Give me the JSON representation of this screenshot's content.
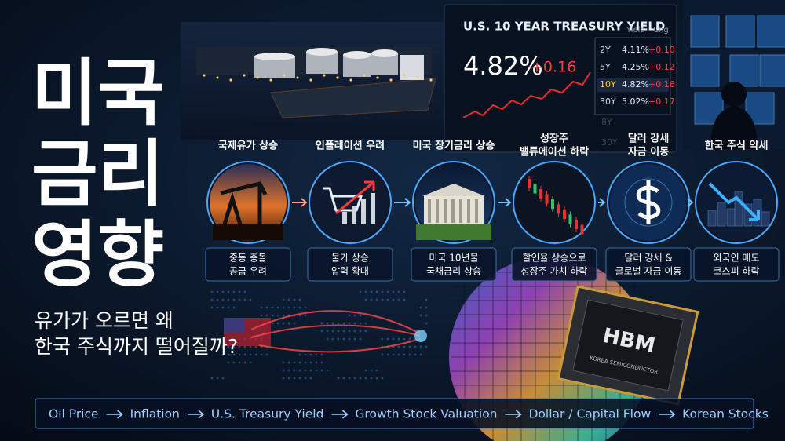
{
  "title": {
    "lines": [
      "미국",
      "금리",
      "영향"
    ]
  },
  "subtitle": {
    "lines": [
      "유가가 오르면 왜",
      "한국 주식까지 떨어질까?"
    ]
  },
  "treasury": {
    "title": "U.S. 10 YEAR TREASURY YIELD",
    "yield": "4.82%",
    "change": "+0.16",
    "headers": [
      "Yield",
      "Chg"
    ],
    "rows": [
      [
        "2Y",
        "4.11%",
        "+0.10"
      ],
      [
        "5Y",
        "4.25%",
        "+0.12"
      ],
      [
        "10Y",
        "4.82%",
        "+0.16"
      ],
      [
        "30Y",
        "5.02%",
        "+0.17"
      ]
    ],
    "faded_rows": [
      "8Y",
      "30Y"
    ]
  },
  "steps": [
    {
      "top": [
        "국제유가 상승"
      ],
      "bottom": [
        "중동 충돌",
        "공급 우려"
      ]
    },
    {
      "top": [
        "인플레이션 우려"
      ],
      "bottom": [
        "물가 상승",
        "압력 확대"
      ]
    },
    {
      "top": [
        "미국 장기금리 상승"
      ],
      "bottom": [
        "미국 10년물",
        "국채금리 상승"
      ]
    },
    {
      "top": [
        "성장주",
        "밸류에이션 하락"
      ],
      "bottom": [
        "할인율 상승으로",
        "성장주 가치 하락"
      ]
    },
    {
      "top": [
        "달러 강세",
        "자금 이동"
      ],
      "bottom": [
        "달러 강세 &",
        "글로벌 자금 이동"
      ]
    },
    {
      "top": [
        "한국 주식 약세"
      ],
      "bottom": [
        "외국인 매도",
        "코스피 하락"
      ]
    }
  ],
  "chip": {
    "label": "HBM",
    "caption": "KOREA SEMICONDUCTOR"
  },
  "flow": [
    "Oil Price",
    "Inflation",
    "U.S. Treasury Yield",
    "Growth Stock Valuation",
    "Dollar / Capital Flow",
    "Korean Stocks"
  ]
}
